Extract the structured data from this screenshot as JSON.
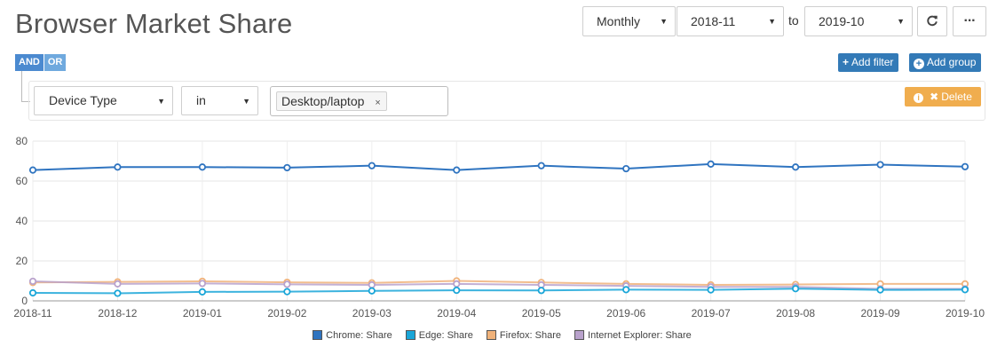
{
  "header": {
    "title": "Browser Market Share",
    "period": "Monthly",
    "from": "2018-11",
    "to_label": "to",
    "to": "2019-10",
    "refresh_icon": "refresh-icon",
    "more_icon": "ellipsis-icon",
    "more_label": "···"
  },
  "logic": {
    "and": "AND",
    "or": "OR"
  },
  "actions": {
    "add_filter": "Add filter",
    "add_group": "Add group",
    "plus": "+"
  },
  "filter": {
    "field": "Device Type",
    "operator": "in",
    "tag": "Desktop/laptop",
    "tag_remove": "×",
    "delete_label": "Delete",
    "delete_x": "✖",
    "info": "i"
  },
  "colors": {
    "primary": "#337ab7",
    "warning": "#f0ad4e",
    "logic": "#6fa9de"
  },
  "chart_data": {
    "type": "line",
    "x": [
      "2018-11",
      "2018-12",
      "2019-01",
      "2019-02",
      "2019-03",
      "2019-04",
      "2019-05",
      "2019-06",
      "2019-07",
      "2019-08",
      "2019-09",
      "2019-10"
    ],
    "yticks": [
      0,
      20,
      40,
      60,
      80
    ],
    "ylim": [
      0,
      80
    ],
    "grid": true,
    "legend_position": "bottom",
    "series": [
      {
        "name": "Chrome: Share",
        "color": "#2f74c0",
        "values": [
          65.5,
          67,
          67,
          66.7,
          67.7,
          65.5,
          67.7,
          66.2,
          68.5,
          67,
          68.2,
          67.2
        ]
      },
      {
        "name": "Edge: Share",
        "color": "#1aa6d8",
        "values": [
          4,
          3.8,
          4.5,
          4.6,
          5,
          5.3,
          5.2,
          5.6,
          5.5,
          6.1,
          5.5,
          5.6
        ]
      },
      {
        "name": "Firefox: Share",
        "color": "#f0b27a",
        "values": [
          9.2,
          9.5,
          9.8,
          9.3,
          9,
          10,
          9.2,
          8.5,
          8,
          8.2,
          8.5,
          8.5
        ]
      },
      {
        "name": "Internet Explorer: Share",
        "color": "#b9a2cc",
        "values": [
          9.8,
          8.5,
          8.7,
          8.3,
          8,
          8.5,
          8,
          7.5,
          7,
          7,
          6,
          6
        ]
      }
    ]
  }
}
